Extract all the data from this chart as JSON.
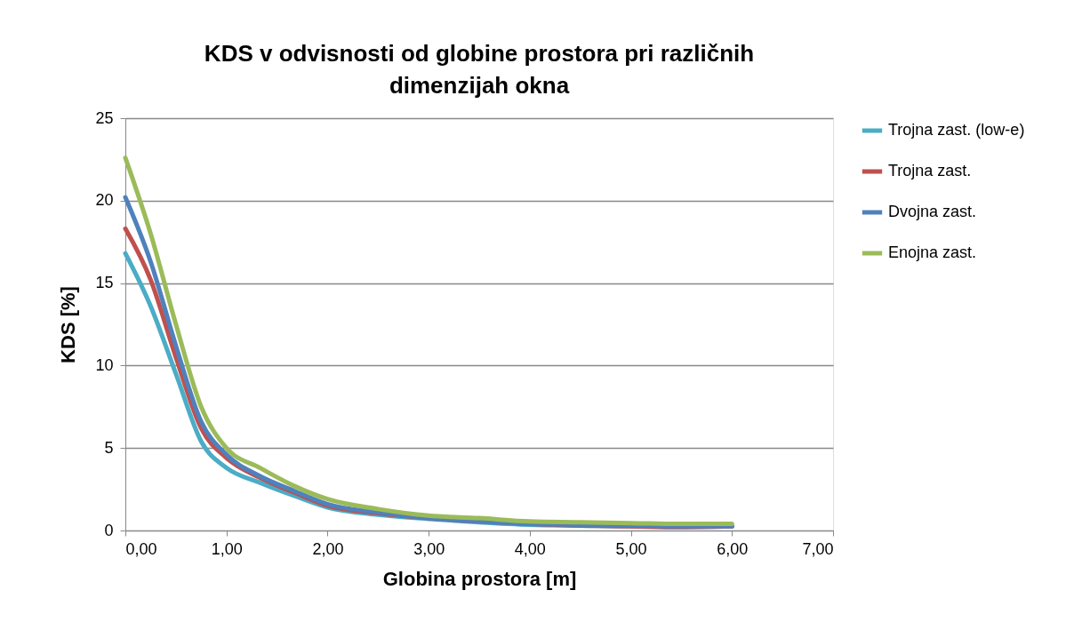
{
  "chart_data": {
    "type": "line",
    "title": "KDS v odvisnosti od globine prostora pri različnih dimenzijah okna",
    "xlabel": "Globina prostora [m]",
    "ylabel": "KDS [%]",
    "x": [
      0,
      0.25,
      0.5,
      0.75,
      1.0,
      1.33,
      1.67,
      2.0,
      2.5,
      3.0,
      3.5,
      4.0,
      4.5,
      5.0,
      5.5,
      6.0
    ],
    "series": [
      {
        "name": "Trojna zast. (low-e)",
        "color": "#4bacc6",
        "values": [
          16.8,
          13.6,
          9.5,
          5.4,
          3.8,
          2.9,
          2.1,
          1.4,
          0.95,
          0.7,
          0.5,
          0.35,
          0.3,
          0.25,
          0.25,
          0.25
        ]
      },
      {
        "name": "Trojna zast.",
        "color": "#c0504d",
        "values": [
          18.3,
          15.2,
          10.5,
          6.2,
          4.4,
          3.2,
          2.3,
          1.5,
          1.05,
          0.75,
          0.55,
          0.4,
          0.3,
          0.25,
          0.2,
          0.25
        ]
      },
      {
        "name": "Dvojna zast.",
        "color": "#4f81bd",
        "values": [
          20.2,
          16.3,
          11.2,
          6.6,
          4.6,
          3.3,
          2.4,
          1.6,
          1.1,
          0.75,
          0.55,
          0.4,
          0.35,
          0.3,
          0.25,
          0.25
        ]
      },
      {
        "name": "Enojna zast.",
        "color": "#9bbb59",
        "values": [
          22.6,
          18.0,
          12.5,
          7.5,
          5.0,
          3.8,
          2.7,
          1.9,
          1.3,
          0.9,
          0.75,
          0.55,
          0.5,
          0.45,
          0.4,
          0.4
        ]
      }
    ],
    "xlim": [
      0,
      7
    ],
    "xticks": [
      {
        "value": 0,
        "label": "0,00"
      },
      {
        "value": 1,
        "label": "1,00"
      },
      {
        "value": 2,
        "label": "2,00"
      },
      {
        "value": 3,
        "label": "3,00"
      },
      {
        "value": 4,
        "label": "4,00"
      },
      {
        "value": 5,
        "label": "5,00"
      },
      {
        "value": 6,
        "label": "6,00"
      },
      {
        "value": 7,
        "label": "7,00"
      }
    ],
    "ylim": [
      0,
      25
    ],
    "yticks": [
      0,
      5,
      10,
      15,
      20,
      25
    ],
    "grid": "y",
    "legend": "right",
    "marker": "none",
    "line_style": "solid"
  }
}
